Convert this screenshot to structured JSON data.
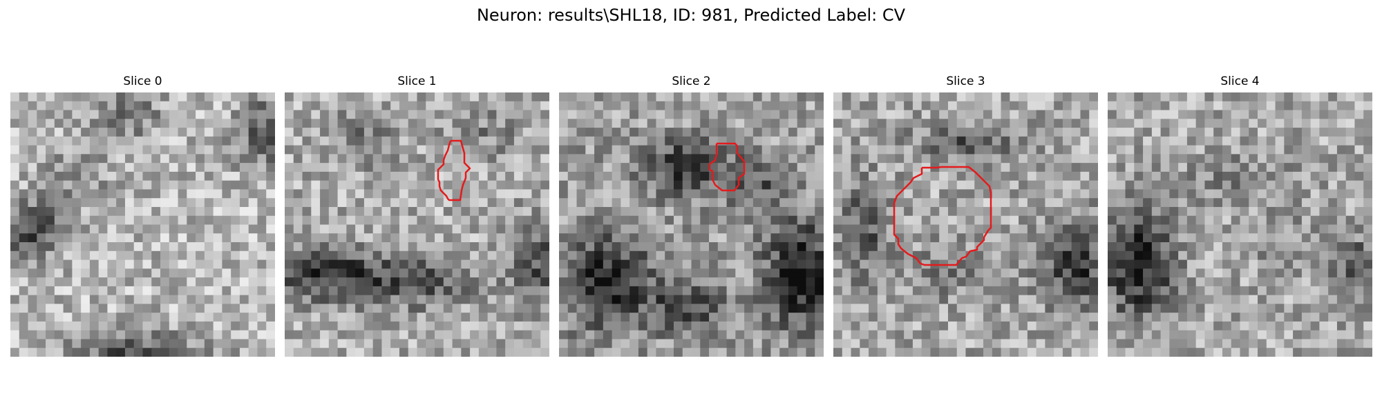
{
  "figure": {
    "title": "Neuron: results\\SHL18, ID: 981, Predicted Label: CV"
  },
  "panels": [
    {
      "title": "Slice 0",
      "has_contour": false
    },
    {
      "title": "Slice 1",
      "has_contour": true
    },
    {
      "title": "Slice 2",
      "has_contour": true
    },
    {
      "title": "Slice 3",
      "has_contour": true
    },
    {
      "title": "Slice 4",
      "has_contour": false
    }
  ],
  "colors": {
    "contour": "#e41a1c",
    "background": "#ffffff"
  }
}
